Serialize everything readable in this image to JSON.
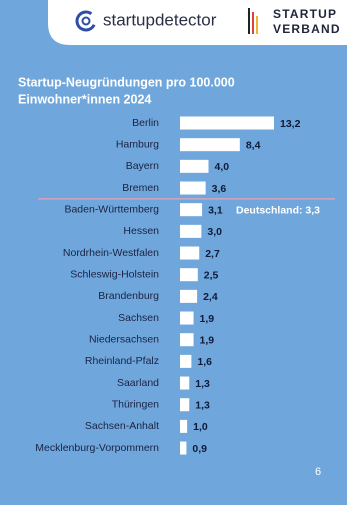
{
  "header": {
    "brand": "startupdetector",
    "partner_line1": "STARTUP",
    "partner_line2": "VERBAND"
  },
  "chart_data": {
    "type": "bar",
    "orientation": "horizontal",
    "title": [
      "Startup-Neugründungen pro 100.000",
      "Einwohner*innen 2024"
    ],
    "categories": [
      "Berlin",
      "Hamburg",
      "Bayern",
      "Bremen",
      "Baden-Württemberg",
      "Hessen",
      "Nordrhein-Westfalen",
      "Schleswig-Holstein",
      "Brandenburg",
      "Sachsen",
      "Niedersachsen",
      "Rheinland-Pfalz",
      "Saarland",
      "Thüringen",
      "Sachsen-Anhalt",
      "Mecklenburg-Vorpommern"
    ],
    "values": [
      13.2,
      8.4,
      4.0,
      3.6,
      3.1,
      3.0,
      2.7,
      2.5,
      2.4,
      1.9,
      1.9,
      1.6,
      1.3,
      1.3,
      1.0,
      0.9
    ],
    "value_labels": [
      "13,2",
      "8,4",
      "4,0",
      "3,6",
      "3,1",
      "3,0",
      "2,7",
      "2,5",
      "2,4",
      "1,9",
      "1,9",
      "1,6",
      "1,3",
      "1,3",
      "1,0",
      "0,9"
    ],
    "color": "#ffffff",
    "reference": {
      "value": 3.3,
      "label": "Deutschland: 3,3",
      "color": "#e9a3b4"
    }
  },
  "page_number": "6"
}
